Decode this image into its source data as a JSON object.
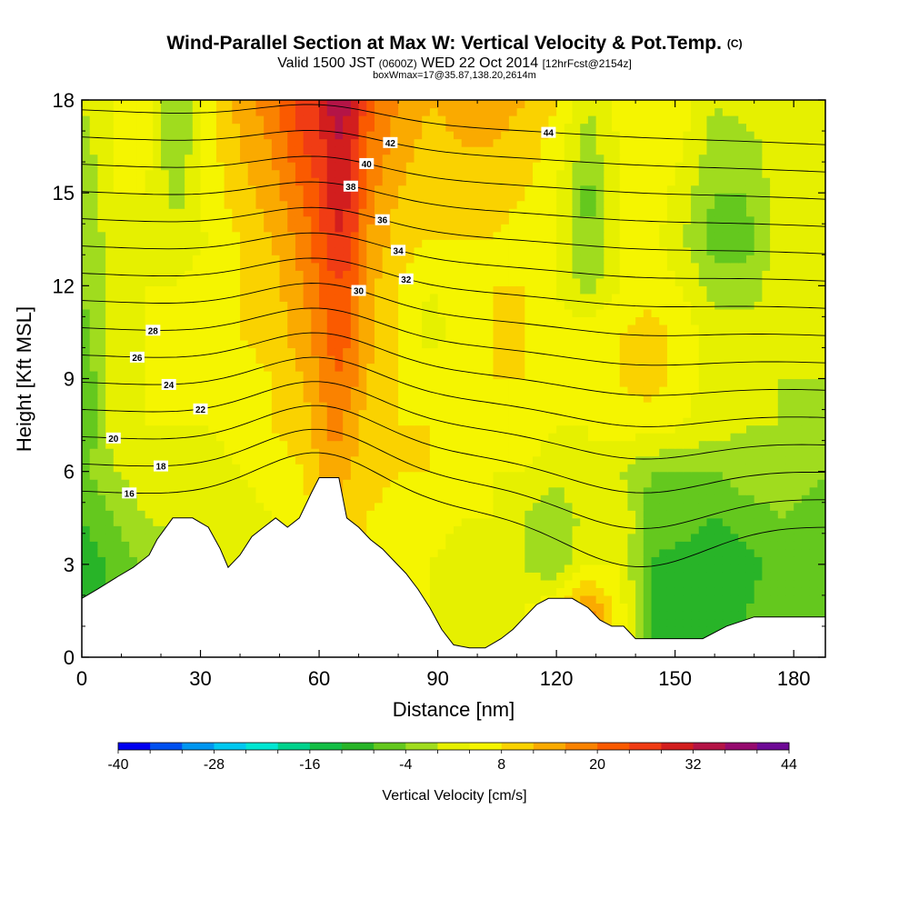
{
  "header": {
    "title": "Wind-Parallel Section at Max W: Vertical Velocity & Pot.Temp.",
    "copyright": "(C)",
    "valid_prefix": "Valid 1500 JST",
    "valid_utc": "(0600Z)",
    "valid_date": "WED 22 Oct 2014",
    "forecast": "[12hrFcst@2154z]",
    "box_info": "boxWmax=17@35.87,138.20,2614m"
  },
  "chart_data": {
    "type": "heatmap",
    "xlabel": "Distance [nm]",
    "ylabel": "Height [Kft MSL]",
    "xlim": [
      0,
      188
    ],
    "ylim": [
      0,
      18
    ],
    "x_ticks": [
      "0",
      "30",
      "60",
      "90",
      "120",
      "150",
      "180"
    ],
    "y_ticks": [
      "0",
      "3",
      "6",
      "9",
      "12",
      "15",
      "18"
    ],
    "colorbar": {
      "title": "Vertical Velocity [cm/s]",
      "min": -40,
      "max": 44,
      "step": 4,
      "labels": [
        "-40",
        "-28",
        "-16",
        "-4",
        "8",
        "20",
        "32",
        "44"
      ],
      "colors": [
        "#0000f0",
        "#0050f0",
        "#0096f0",
        "#00c8f0",
        "#00e6d2",
        "#00d28c",
        "#14be46",
        "#28b428",
        "#64c81e",
        "#a0dc1e",
        "#e6f000",
        "#f5f500",
        "#fad200",
        "#faaa00",
        "#fa8200",
        "#fa5a00",
        "#f03c14",
        "#d21e1e",
        "#b41446",
        "#960a6e",
        "#6e0a96"
      ]
    },
    "terrain_kft": [
      [
        0,
        1.9
      ],
      [
        4,
        2.2
      ],
      [
        9,
        2.6
      ],
      [
        13,
        2.9
      ],
      [
        17,
        3.3
      ],
      [
        19,
        3.8
      ],
      [
        23,
        4.5
      ],
      [
        28,
        4.5
      ],
      [
        32,
        4.2
      ],
      [
        35,
        3.5
      ],
      [
        37,
        2.9
      ],
      [
        40,
        3.3
      ],
      [
        43,
        3.9
      ],
      [
        46,
        4.2
      ],
      [
        49,
        4.5
      ],
      [
        52,
        4.2
      ],
      [
        55,
        4.5
      ],
      [
        58,
        5.3
      ],
      [
        60,
        5.8
      ],
      [
        65,
        5.8
      ],
      [
        67,
        4.5
      ],
      [
        70,
        4.2
      ],
      [
        73,
        3.8
      ],
      [
        76,
        3.5
      ],
      [
        79,
        3.1
      ],
      [
        82,
        2.7
      ],
      [
        85,
        2.2
      ],
      [
        88,
        1.6
      ],
      [
        91,
        0.9
      ],
      [
        94,
        0.4
      ],
      [
        98,
        0.3
      ],
      [
        102,
        0.3
      ],
      [
        106,
        0.6
      ],
      [
        109,
        0.9
      ],
      [
        112,
        1.3
      ],
      [
        115,
        1.7
      ],
      [
        118,
        1.9
      ],
      [
        121,
        1.9
      ],
      [
        124,
        1.9
      ],
      [
        128,
        1.6
      ],
      [
        131,
        1.2
      ],
      [
        134,
        1.0
      ],
      [
        137,
        1.0
      ],
      [
        140,
        0.6
      ],
      [
        145,
        0.6
      ],
      [
        150,
        0.6
      ],
      [
        157,
        0.6
      ],
      [
        163,
        1.0
      ],
      [
        170,
        1.3
      ],
      [
        188,
        1.3
      ]
    ],
    "w_field": {
      "x": [
        0,
        8,
        16,
        24,
        32,
        40,
        48,
        56,
        60,
        64,
        68,
        72,
        80,
        88,
        96,
        104,
        112,
        120,
        128,
        136,
        144,
        152,
        160,
        168,
        176,
        188
      ],
      "levels_kft": [
        0,
        1.5,
        3,
        4.5,
        6,
        7.5,
        9,
        10.5,
        12,
        13.5,
        15,
        16.5,
        18
      ],
      "values_cms": [
        [
          -8,
          -8,
          -6,
          -4,
          -2,
          0,
          2,
          4,
          8,
          10,
          8,
          6,
          4,
          4,
          2,
          2,
          4,
          8,
          14,
          6,
          -8,
          -10,
          -10,
          -8,
          -6,
          -6
        ],
        [
          -10,
          -8,
          -6,
          -4,
          -2,
          0,
          2,
          4,
          8,
          10,
          8,
          6,
          4,
          4,
          2,
          2,
          4,
          8,
          18,
          6,
          -8,
          -10,
          -12,
          -8,
          -6,
          -6
        ],
        [
          -12,
          -6,
          -4,
          -4,
          0,
          2,
          2,
          4,
          8,
          10,
          8,
          6,
          4,
          4,
          2,
          2,
          0,
          -4,
          4,
          4,
          -8,
          -10,
          -12,
          -10,
          -6,
          -8
        ],
        [
          -8,
          -4,
          0,
          2,
          0,
          2,
          4,
          6,
          10,
          10,
          10,
          8,
          6,
          6,
          4,
          4,
          0,
          -4,
          2,
          4,
          -6,
          -6,
          -8,
          -6,
          -4,
          -6
        ],
        [
          -6,
          0,
          2,
          2,
          2,
          4,
          6,
          8,
          12,
          14,
          12,
          10,
          8,
          8,
          6,
          4,
          4,
          2,
          4,
          0,
          -4,
          -4,
          -4,
          -2,
          -2,
          -4
        ],
        [
          -8,
          2,
          4,
          4,
          4,
          6,
          8,
          10,
          14,
          18,
          14,
          10,
          8,
          8,
          6,
          6,
          6,
          4,
          4,
          6,
          6,
          4,
          2,
          0,
          0,
          -4
        ],
        [
          -8,
          2,
          4,
          4,
          6,
          6,
          8,
          12,
          16,
          20,
          18,
          12,
          8,
          6,
          8,
          8,
          8,
          6,
          6,
          8,
          10,
          6,
          2,
          0,
          0,
          0
        ],
        [
          -6,
          2,
          4,
          4,
          6,
          8,
          10,
          14,
          18,
          22,
          20,
          14,
          8,
          2,
          6,
          8,
          8,
          6,
          6,
          8,
          10,
          6,
          2,
          2,
          0,
          0
        ],
        [
          -4,
          2,
          4,
          4,
          6,
          8,
          10,
          16,
          20,
          24,
          22,
          14,
          8,
          4,
          6,
          8,
          8,
          4,
          -2,
          4,
          6,
          4,
          -2,
          -2,
          2,
          4
        ],
        [
          -4,
          2,
          4,
          2,
          4,
          8,
          12,
          18,
          22,
          28,
          26,
          16,
          10,
          8,
          8,
          8,
          6,
          4,
          -4,
          4,
          6,
          0,
          -6,
          -6,
          2,
          4
        ],
        [
          -4,
          4,
          4,
          -2,
          6,
          10,
          14,
          20,
          24,
          30,
          28,
          18,
          12,
          8,
          8,
          10,
          8,
          4,
          -6,
          4,
          6,
          2,
          -4,
          -4,
          2,
          4
        ],
        [
          -2,
          4,
          6,
          -4,
          6,
          12,
          16,
          24,
          26,
          32,
          30,
          20,
          14,
          10,
          12,
          12,
          10,
          6,
          -2,
          4,
          8,
          4,
          -2,
          -2,
          2,
          4
        ],
        [
          0,
          4,
          6,
          -4,
          6,
          14,
          18,
          28,
          28,
          34,
          32,
          22,
          16,
          12,
          14,
          14,
          12,
          8,
          0,
          6,
          8,
          6,
          0,
          2,
          4,
          4
        ]
      ]
    },
    "theta_contours_c": [
      16,
      18,
      20,
      22,
      24,
      26,
      28,
      30,
      32,
      34,
      36,
      38,
      40,
      42,
      44
    ]
  }
}
